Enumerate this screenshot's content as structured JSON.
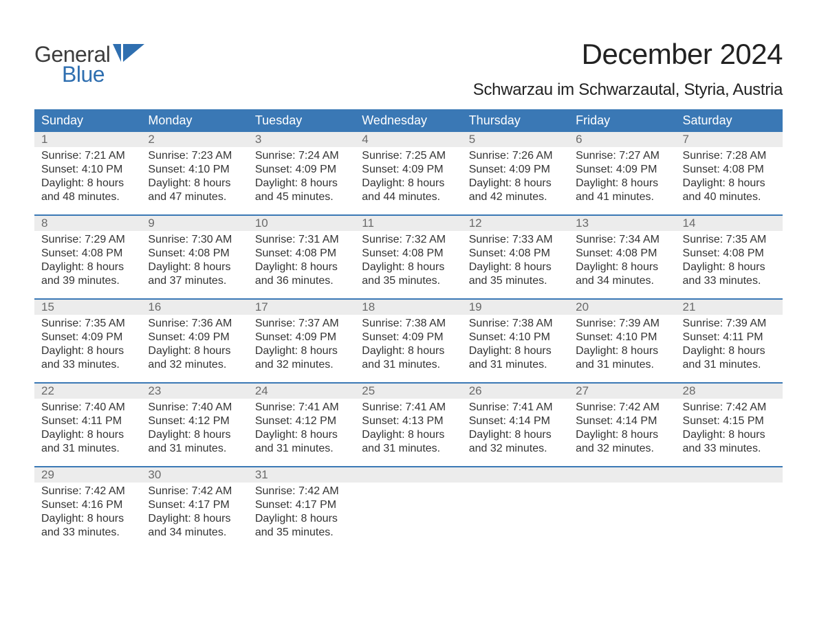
{
  "logo": {
    "word1": "General",
    "word2": "Blue"
  },
  "title": "December 2024",
  "location": "Schwarzau im Schwarzautal, Styria, Austria",
  "colors": {
    "header_bg": "#3a78b5",
    "header_text": "#ffffff",
    "daynum_bg": "#ececec",
    "daynum_text": "#6a6a6a",
    "border": "#3a78b5",
    "body_text": "#333333",
    "logo_general": "#3d3d3d",
    "logo_blue": "#2f6fb0"
  },
  "day_labels": [
    "Sunday",
    "Monday",
    "Tuesday",
    "Wednesday",
    "Thursday",
    "Friday",
    "Saturday"
  ],
  "weeks": [
    [
      {
        "n": "1",
        "l1": "Sunrise: 7:21 AM",
        "l2": "Sunset: 4:10 PM",
        "l3": "Daylight: 8 hours",
        "l4": "and 48 minutes."
      },
      {
        "n": "2",
        "l1": "Sunrise: 7:23 AM",
        "l2": "Sunset: 4:10 PM",
        "l3": "Daylight: 8 hours",
        "l4": "and 47 minutes."
      },
      {
        "n": "3",
        "l1": "Sunrise: 7:24 AM",
        "l2": "Sunset: 4:09 PM",
        "l3": "Daylight: 8 hours",
        "l4": "and 45 minutes."
      },
      {
        "n": "4",
        "l1": "Sunrise: 7:25 AM",
        "l2": "Sunset: 4:09 PM",
        "l3": "Daylight: 8 hours",
        "l4": "and 44 minutes."
      },
      {
        "n": "5",
        "l1": "Sunrise: 7:26 AM",
        "l2": "Sunset: 4:09 PM",
        "l3": "Daylight: 8 hours",
        "l4": "and 42 minutes."
      },
      {
        "n": "6",
        "l1": "Sunrise: 7:27 AM",
        "l2": "Sunset: 4:09 PM",
        "l3": "Daylight: 8 hours",
        "l4": "and 41 minutes."
      },
      {
        "n": "7",
        "l1": "Sunrise: 7:28 AM",
        "l2": "Sunset: 4:08 PM",
        "l3": "Daylight: 8 hours",
        "l4": "and 40 minutes."
      }
    ],
    [
      {
        "n": "8",
        "l1": "Sunrise: 7:29 AM",
        "l2": "Sunset: 4:08 PM",
        "l3": "Daylight: 8 hours",
        "l4": "and 39 minutes."
      },
      {
        "n": "9",
        "l1": "Sunrise: 7:30 AM",
        "l2": "Sunset: 4:08 PM",
        "l3": "Daylight: 8 hours",
        "l4": "and 37 minutes."
      },
      {
        "n": "10",
        "l1": "Sunrise: 7:31 AM",
        "l2": "Sunset: 4:08 PM",
        "l3": "Daylight: 8 hours",
        "l4": "and 36 minutes."
      },
      {
        "n": "11",
        "l1": "Sunrise: 7:32 AM",
        "l2": "Sunset: 4:08 PM",
        "l3": "Daylight: 8 hours",
        "l4": "and 35 minutes."
      },
      {
        "n": "12",
        "l1": "Sunrise: 7:33 AM",
        "l2": "Sunset: 4:08 PM",
        "l3": "Daylight: 8 hours",
        "l4": "and 35 minutes."
      },
      {
        "n": "13",
        "l1": "Sunrise: 7:34 AM",
        "l2": "Sunset: 4:08 PM",
        "l3": "Daylight: 8 hours",
        "l4": "and 34 minutes."
      },
      {
        "n": "14",
        "l1": "Sunrise: 7:35 AM",
        "l2": "Sunset: 4:08 PM",
        "l3": "Daylight: 8 hours",
        "l4": "and 33 minutes."
      }
    ],
    [
      {
        "n": "15",
        "l1": "Sunrise: 7:35 AM",
        "l2": "Sunset: 4:09 PM",
        "l3": "Daylight: 8 hours",
        "l4": "and 33 minutes."
      },
      {
        "n": "16",
        "l1": "Sunrise: 7:36 AM",
        "l2": "Sunset: 4:09 PM",
        "l3": "Daylight: 8 hours",
        "l4": "and 32 minutes."
      },
      {
        "n": "17",
        "l1": "Sunrise: 7:37 AM",
        "l2": "Sunset: 4:09 PM",
        "l3": "Daylight: 8 hours",
        "l4": "and 32 minutes."
      },
      {
        "n": "18",
        "l1": "Sunrise: 7:38 AM",
        "l2": "Sunset: 4:09 PM",
        "l3": "Daylight: 8 hours",
        "l4": "and 31 minutes."
      },
      {
        "n": "19",
        "l1": "Sunrise: 7:38 AM",
        "l2": "Sunset: 4:10 PM",
        "l3": "Daylight: 8 hours",
        "l4": "and 31 minutes."
      },
      {
        "n": "20",
        "l1": "Sunrise: 7:39 AM",
        "l2": "Sunset: 4:10 PM",
        "l3": "Daylight: 8 hours",
        "l4": "and 31 minutes."
      },
      {
        "n": "21",
        "l1": "Sunrise: 7:39 AM",
        "l2": "Sunset: 4:11 PM",
        "l3": "Daylight: 8 hours",
        "l4": "and 31 minutes."
      }
    ],
    [
      {
        "n": "22",
        "l1": "Sunrise: 7:40 AM",
        "l2": "Sunset: 4:11 PM",
        "l3": "Daylight: 8 hours",
        "l4": "and 31 minutes."
      },
      {
        "n": "23",
        "l1": "Sunrise: 7:40 AM",
        "l2": "Sunset: 4:12 PM",
        "l3": "Daylight: 8 hours",
        "l4": "and 31 minutes."
      },
      {
        "n": "24",
        "l1": "Sunrise: 7:41 AM",
        "l2": "Sunset: 4:12 PM",
        "l3": "Daylight: 8 hours",
        "l4": "and 31 minutes."
      },
      {
        "n": "25",
        "l1": "Sunrise: 7:41 AM",
        "l2": "Sunset: 4:13 PM",
        "l3": "Daylight: 8 hours",
        "l4": "and 31 minutes."
      },
      {
        "n": "26",
        "l1": "Sunrise: 7:41 AM",
        "l2": "Sunset: 4:14 PM",
        "l3": "Daylight: 8 hours",
        "l4": "and 32 minutes."
      },
      {
        "n": "27",
        "l1": "Sunrise: 7:42 AM",
        "l2": "Sunset: 4:14 PM",
        "l3": "Daylight: 8 hours",
        "l4": "and 32 minutes."
      },
      {
        "n": "28",
        "l1": "Sunrise: 7:42 AM",
        "l2": "Sunset: 4:15 PM",
        "l3": "Daylight: 8 hours",
        "l4": "and 33 minutes."
      }
    ],
    [
      {
        "n": "29",
        "l1": "Sunrise: 7:42 AM",
        "l2": "Sunset: 4:16 PM",
        "l3": "Daylight: 8 hours",
        "l4": "and 33 minutes."
      },
      {
        "n": "30",
        "l1": "Sunrise: 7:42 AM",
        "l2": "Sunset: 4:17 PM",
        "l3": "Daylight: 8 hours",
        "l4": "and 34 minutes."
      },
      {
        "n": "31",
        "l1": "Sunrise: 7:42 AM",
        "l2": "Sunset: 4:17 PM",
        "l3": "Daylight: 8 hours",
        "l4": "and 35 minutes."
      },
      {
        "n": "",
        "l1": "",
        "l2": "",
        "l3": "",
        "l4": ""
      },
      {
        "n": "",
        "l1": "",
        "l2": "",
        "l3": "",
        "l4": ""
      },
      {
        "n": "",
        "l1": "",
        "l2": "",
        "l3": "",
        "l4": ""
      },
      {
        "n": "",
        "l1": "",
        "l2": "",
        "l3": "",
        "l4": ""
      }
    ]
  ]
}
